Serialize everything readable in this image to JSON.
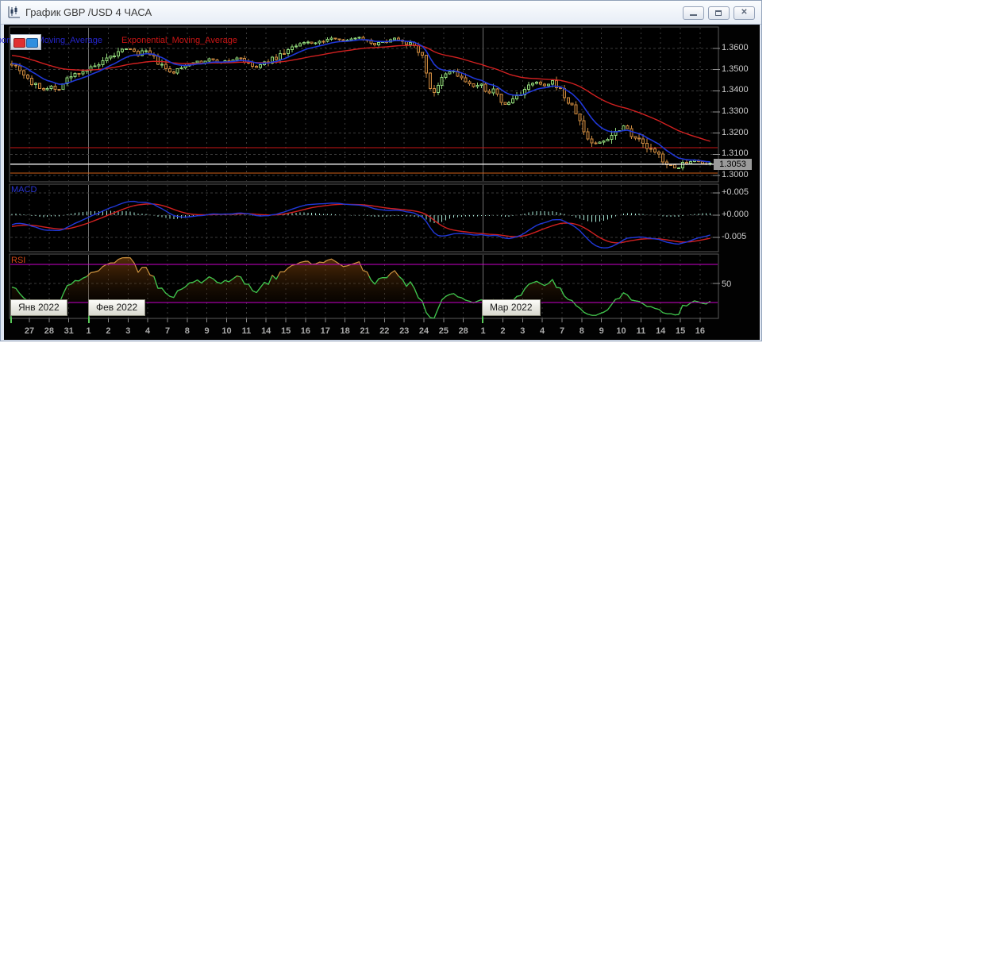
{
  "window": {
    "title": "График GBP /USD  4 ЧАСА",
    "controls": [
      {
        "name": "minimize",
        "icon": "minimize-icon"
      },
      {
        "name": "maximize",
        "icon": "maximize-icon"
      },
      {
        "name": "close",
        "icon": "close-icon"
      }
    ]
  },
  "legend": {
    "ma_fast_label": "Exponential_Moving_Average",
    "ma_slow_label": "Exponential_Moving_Average"
  },
  "panels": {
    "macd_label": "MACD",
    "rsi_label": "RSI"
  },
  "price_axis": {
    "ticks": [
      "1.3600",
      "1.3500",
      "1.3400",
      "1.3300",
      "1.3200",
      "1.3100",
      "1.3000"
    ],
    "current_price": "1.3053"
  },
  "macd_axis": {
    "ticks": [
      "+0.005",
      "+0.000",
      "-0.005"
    ]
  },
  "rsi_axis": {
    "ticks": [
      "50"
    ]
  },
  "x_axis": {
    "days": [
      "27",
      "28",
      "31",
      "1",
      "2",
      "3",
      "4",
      "7",
      "8",
      "9",
      "10",
      "11",
      "14",
      "15",
      "16",
      "17",
      "18",
      "21",
      "22",
      "23",
      "24",
      "25",
      "28",
      "1",
      "2",
      "3",
      "4",
      "7",
      "8",
      "9",
      "10",
      "11",
      "14",
      "15",
      "16"
    ],
    "months": [
      {
        "label": "Янв 2022"
      },
      {
        "label": "Фев 2022"
      },
      {
        "label": "Мар 2022"
      }
    ]
  },
  "chart_data": {
    "type": "candlestick",
    "symbol": "GBP/USD",
    "timeframe": "4 hours",
    "ylim": [
      1.297,
      1.37
    ],
    "y_ticks": [
      1.36,
      1.35,
      1.34,
      1.33,
      1.32,
      1.31,
      1.3
    ],
    "current_price": 1.3053,
    "levels": {
      "resistance_red": 1.3131,
      "current_white": 1.3053,
      "support_orange": 1.3011
    },
    "candle_count": 178,
    "price_keypoints": [
      [
        14,
        1.353
      ],
      [
        25,
        1.35
      ],
      [
        40,
        1.343
      ],
      [
        55,
        1.3405
      ],
      [
        62,
        1.3425
      ],
      [
        70,
        1.34
      ],
      [
        85,
        1.346
      ],
      [
        100,
        1.349
      ],
      [
        112,
        1.3505
      ],
      [
        125,
        1.3525
      ],
      [
        140,
        1.356
      ],
      [
        152,
        1.359
      ],
      [
        163,
        1.36
      ],
      [
        172,
        1.357
      ],
      [
        180,
        1.359
      ],
      [
        192,
        1.3555
      ],
      [
        205,
        1.351
      ],
      [
        215,
        1.348
      ],
      [
        228,
        1.351
      ],
      [
        240,
        1.354
      ],
      [
        252,
        1.353
      ],
      [
        262,
        1.355
      ],
      [
        275,
        1.3535
      ],
      [
        288,
        1.354
      ],
      [
        300,
        1.356
      ],
      [
        312,
        1.3525
      ],
      [
        322,
        1.351
      ],
      [
        335,
        1.3535
      ],
      [
        348,
        1.356
      ],
      [
        360,
        1.359
      ],
      [
        372,
        1.361
      ],
      [
        385,
        1.363
      ],
      [
        398,
        1.3625
      ],
      [
        410,
        1.364
      ],
      [
        422,
        1.365
      ],
      [
        435,
        1.3635
      ],
      [
        448,
        1.3655
      ],
      [
        458,
        1.3645
      ],
      [
        470,
        1.362
      ],
      [
        482,
        1.363
      ],
      [
        495,
        1.365
      ],
      [
        505,
        1.364
      ],
      [
        515,
        1.362
      ],
      [
        525,
        1.36
      ],
      [
        532,
        1.355
      ],
      [
        540,
        1.342
      ],
      [
        547,
        1.339
      ],
      [
        555,
        1.345
      ],
      [
        562,
        1.348
      ],
      [
        570,
        1.3495
      ],
      [
        578,
        1.346
      ],
      [
        588,
        1.344
      ],
      [
        598,
        1.341
      ],
      [
        605,
        1.343
      ],
      [
        612,
        1.3395
      ],
      [
        620,
        1.34
      ],
      [
        628,
        1.336
      ],
      [
        636,
        1.333
      ],
      [
        645,
        1.336
      ],
      [
        655,
        1.339
      ],
      [
        665,
        1.342
      ],
      [
        675,
        1.344
      ],
      [
        685,
        1.342
      ],
      [
        695,
        1.344
      ],
      [
        702,
        1.342
      ],
      [
        710,
        1.337
      ],
      [
        718,
        1.333
      ],
      [
        726,
        1.329
      ],
      [
        734,
        1.321
      ],
      [
        742,
        1.316
      ],
      [
        750,
        1.315
      ],
      [
        758,
        1.316
      ],
      [
        765,
        1.318
      ],
      [
        772,
        1.32
      ],
      [
        780,
        1.322
      ],
      [
        786,
        1.324
      ],
      [
        793,
        1.32
      ],
      [
        800,
        1.318
      ],
      [
        808,
        1.315
      ],
      [
        815,
        1.313
      ],
      [
        822,
        1.311
      ],
      [
        830,
        1.309
      ],
      [
        838,
        1.306
      ],
      [
        845,
        1.304
      ],
      [
        852,
        1.303
      ],
      [
        858,
        1.306
      ],
      [
        865,
        1.305
      ],
      [
        872,
        1.307
      ],
      [
        880,
        1.306
      ],
      [
        888,
        1.305
      ],
      [
        895,
        1.306
      ],
      [
        899,
        1.3053
      ]
    ],
    "indicators": {
      "ema_fast_period": 10,
      "ema_slow_period": 40,
      "macd_periods": [
        12,
        26,
        9
      ],
      "macd_ticks": [
        0.005,
        0.0,
        -0.005
      ],
      "rsi_period": 14,
      "rsi_levels": [
        30,
        70
      ],
      "rsi_mid": 50
    },
    "noise_seed": 7
  },
  "colors": {
    "candle_up": "#8fd579",
    "candle_up_fill": "#0c1a06",
    "candle_down": "#c9883f",
    "candle_down_fill": "#201204",
    "ema_fast": "#2038d8",
    "ema_slow": "#d02020",
    "macd_line": "#2038d8",
    "macd_signal": "#d02020",
    "macd_hist": "#a8ead8",
    "rsi_line": "#cf9440",
    "rsi_oversold": "#2ec84e",
    "rsi_level": "#cc00cc",
    "level_red": "#c81616",
    "level_white": "#e4e4e4",
    "level_orange": "#d06018",
    "grid": "#3a3a3a",
    "grid_month": "#6e6e6e",
    "panel_border": "#5a5a5a",
    "axis_text": "#cccccc",
    "month_line": "#58c858"
  }
}
